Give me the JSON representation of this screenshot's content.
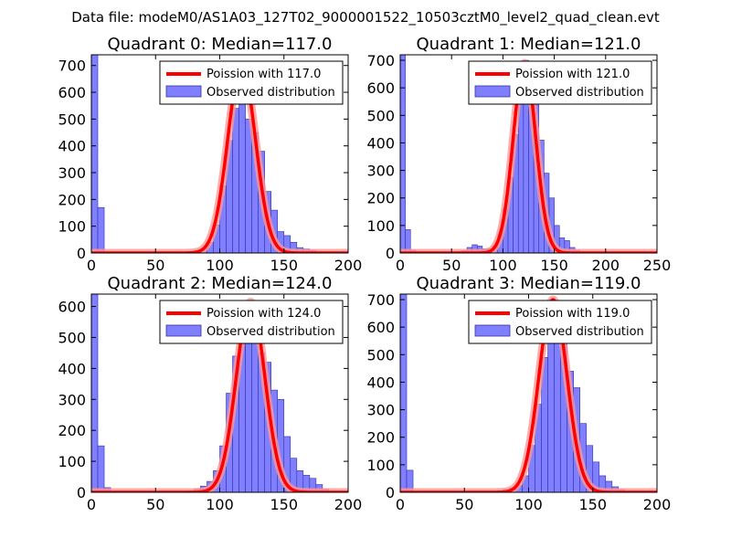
{
  "figure_title": "Data file: modeM0/AS1A03_127T02_9000001522_10503cztM0_level2_quad_clean.evt",
  "colors": {
    "bars": "#7f7fff",
    "bar_edge": "#3333aa",
    "poisson": "#ff0000",
    "poisson_glow": "#ff9999"
  },
  "chart_data": [
    {
      "type": "bar",
      "title": "Quadrant 0: Median=117.0",
      "xlim": [
        0,
        200
      ],
      "ylim": [
        0,
        740
      ],
      "xticks": [
        0,
        50,
        100,
        150,
        200
      ],
      "yticks": [
        0,
        100,
        200,
        300,
        400,
        500,
        600,
        700
      ],
      "bin_width": 5,
      "bins": [
        0,
        5,
        70,
        75,
        80,
        85,
        90,
        95,
        100,
        105,
        110,
        115,
        120,
        125,
        130,
        135,
        140,
        145,
        150,
        155,
        160,
        165,
        170
      ],
      "counts": [
        740,
        170,
        2,
        4,
        10,
        15,
        40,
        105,
        250,
        420,
        540,
        580,
        500,
        450,
        380,
        230,
        160,
        80,
        65,
        40,
        20,
        15,
        10
      ],
      "poisson_mean": 117.0,
      "poisson_peak": 700,
      "legend": [
        "Poission with 117.0",
        "Observed distribution"
      ]
    },
    {
      "type": "bar",
      "title": "Quadrant 1: Median=121.0",
      "xlim": [
        0,
        250
      ],
      "ylim": [
        0,
        720
      ],
      "xticks": [
        0,
        50,
        100,
        150,
        200,
        250
      ],
      "yticks": [
        0,
        100,
        200,
        300,
        400,
        500,
        600,
        700
      ],
      "bin_width": 5,
      "bins": [
        0,
        5,
        10,
        55,
        60,
        65,
        70,
        75,
        80,
        85,
        90,
        95,
        100,
        105,
        110,
        115,
        120,
        125,
        130,
        135,
        140,
        145,
        150,
        155,
        160,
        165,
        170
      ],
      "counts": [
        720,
        85,
        10,
        5,
        8,
        20,
        30,
        25,
        15,
        15,
        25,
        70,
        160,
        275,
        430,
        560,
        700,
        600,
        590,
        410,
        290,
        200,
        100,
        55,
        45,
        20,
        10
      ],
      "poisson_mean": 121.0,
      "poisson_peak": 690,
      "legend": [
        "Poission with 121.0",
        "Observed distribution"
      ]
    },
    {
      "type": "bar",
      "title": "Quadrant 2: Median=124.0",
      "xlim": [
        0,
        200
      ],
      "ylim": [
        0,
        640
      ],
      "xticks": [
        0,
        50,
        100,
        150,
        200
      ],
      "yticks": [
        0,
        100,
        200,
        300,
        400,
        500,
        600
      ],
      "bin_width": 5,
      "bins": [
        0,
        5,
        10,
        70,
        75,
        80,
        85,
        90,
        95,
        100,
        105,
        110,
        115,
        120,
        125,
        130,
        135,
        140,
        145,
        150,
        155,
        160,
        165,
        170,
        175,
        180
      ],
      "counts": [
        640,
        150,
        15,
        3,
        5,
        10,
        20,
        35,
        70,
        150,
        320,
        440,
        490,
        610,
        590,
        450,
        420,
        330,
        300,
        180,
        110,
        70,
        55,
        45,
        25,
        10
      ],
      "poisson_mean": 124.0,
      "poisson_peak": 615,
      "legend": [
        "Poission with 124.0",
        "Observed distribution"
      ]
    },
    {
      "type": "bar",
      "title": "Quadrant 3: Median=119.0",
      "xlim": [
        0,
        200
      ],
      "ylim": [
        0,
        720
      ],
      "xticks": [
        0,
        50,
        100,
        150,
        200
      ],
      "yticks": [
        0,
        100,
        200,
        300,
        400,
        500,
        600,
        700
      ],
      "bin_width": 5,
      "bins": [
        0,
        5,
        75,
        80,
        85,
        90,
        95,
        100,
        105,
        110,
        115,
        120,
        125,
        130,
        135,
        140,
        145,
        150,
        155,
        160,
        165,
        170
      ],
      "counts": [
        720,
        80,
        5,
        10,
        15,
        25,
        60,
        170,
        320,
        490,
        570,
        650,
        580,
        440,
        380,
        250,
        170,
        110,
        60,
        40,
        20,
        10
      ],
      "poisson_mean": 119.0,
      "poisson_peak": 700,
      "legend": [
        "Poission with 119.0",
        "Observed distribution"
      ]
    }
  ]
}
